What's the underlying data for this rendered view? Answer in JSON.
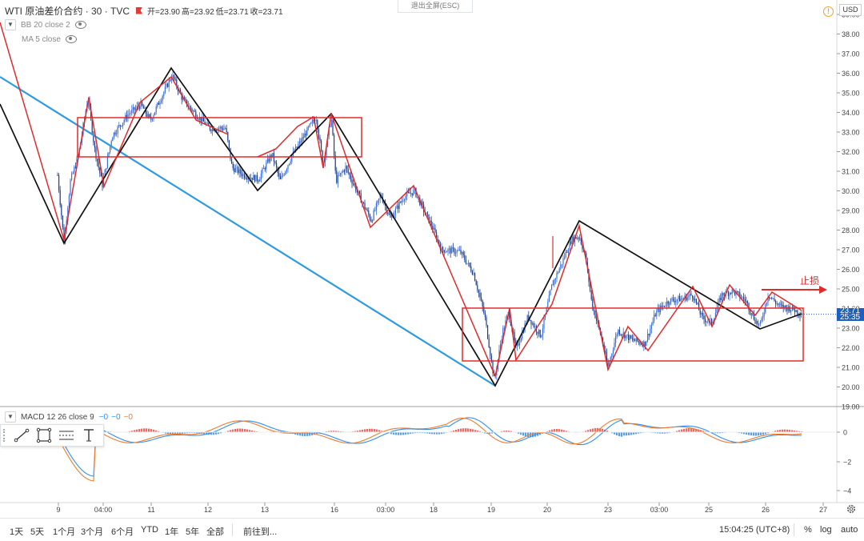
{
  "header": {
    "symbol": "WTI 原油差价合约 · 30 · TVC",
    "open": "开=23.90",
    "high": "高=23.92",
    "low": "低=23.71",
    "close": "收=23.71",
    "indicators": [
      "BB 20 close 2",
      "MA 5 close"
    ],
    "exit_fullscreen": "退出全屏(ESC)",
    "currency": "USD",
    "alert_icon": "!"
  },
  "price_axis": {
    "labels": [
      "39.00",
      "38.00",
      "37.00",
      "36.00",
      "35.00",
      "34.00",
      "33.00",
      "32.00",
      "31.00",
      "30.00",
      "29.00",
      "28.00",
      "27.00",
      "26.00",
      "25.00",
      "24.00",
      "23.00",
      "22.00",
      "21.00",
      "20.00",
      "19.00"
    ],
    "current_price_label": "25:35",
    "current_price": "23.71"
  },
  "macd": {
    "label": "MACD 12 26 close 9",
    "v1": "−0",
    "v2": "−0",
    "v3": "−0",
    "axis_labels": [
      "0",
      "−2",
      "−4"
    ]
  },
  "time_axis": {
    "labels": [
      "9",
      "04:00",
      "11",
      "12",
      "13",
      "16",
      "03:00",
      "18",
      "19",
      "20",
      "23",
      "03:00",
      "25",
      "26",
      "27"
    ]
  },
  "annotations": {
    "stop_loss": "止损"
  },
  "drawing_tools": [
    "trend-line-icon",
    "rectangle-icon",
    "parallel-channel-icon",
    "text-icon"
  ],
  "bottom_bar": {
    "ranges": [
      "1天",
      "5天",
      "1个月",
      "3个月",
      "6个月",
      "YTD",
      "1年",
      "5年",
      "全部"
    ],
    "goto": "前往到...",
    "clock": "15:04:25 (UTC+8)",
    "percent": "%",
    "log": "log",
    "auto": "auto"
  },
  "colors": {
    "bull": "#3a6fd8",
    "bear": "#1d3f8f",
    "red_drawing": "#e02b2b",
    "black_zigzag": "#111111",
    "blue_trend": "#2f9ae0",
    "macd_line": "#2f8ff0",
    "signal_line": "#f07b2b",
    "hist_pos": "#e5534b",
    "hist_neg": "#3b8ee8"
  }
}
